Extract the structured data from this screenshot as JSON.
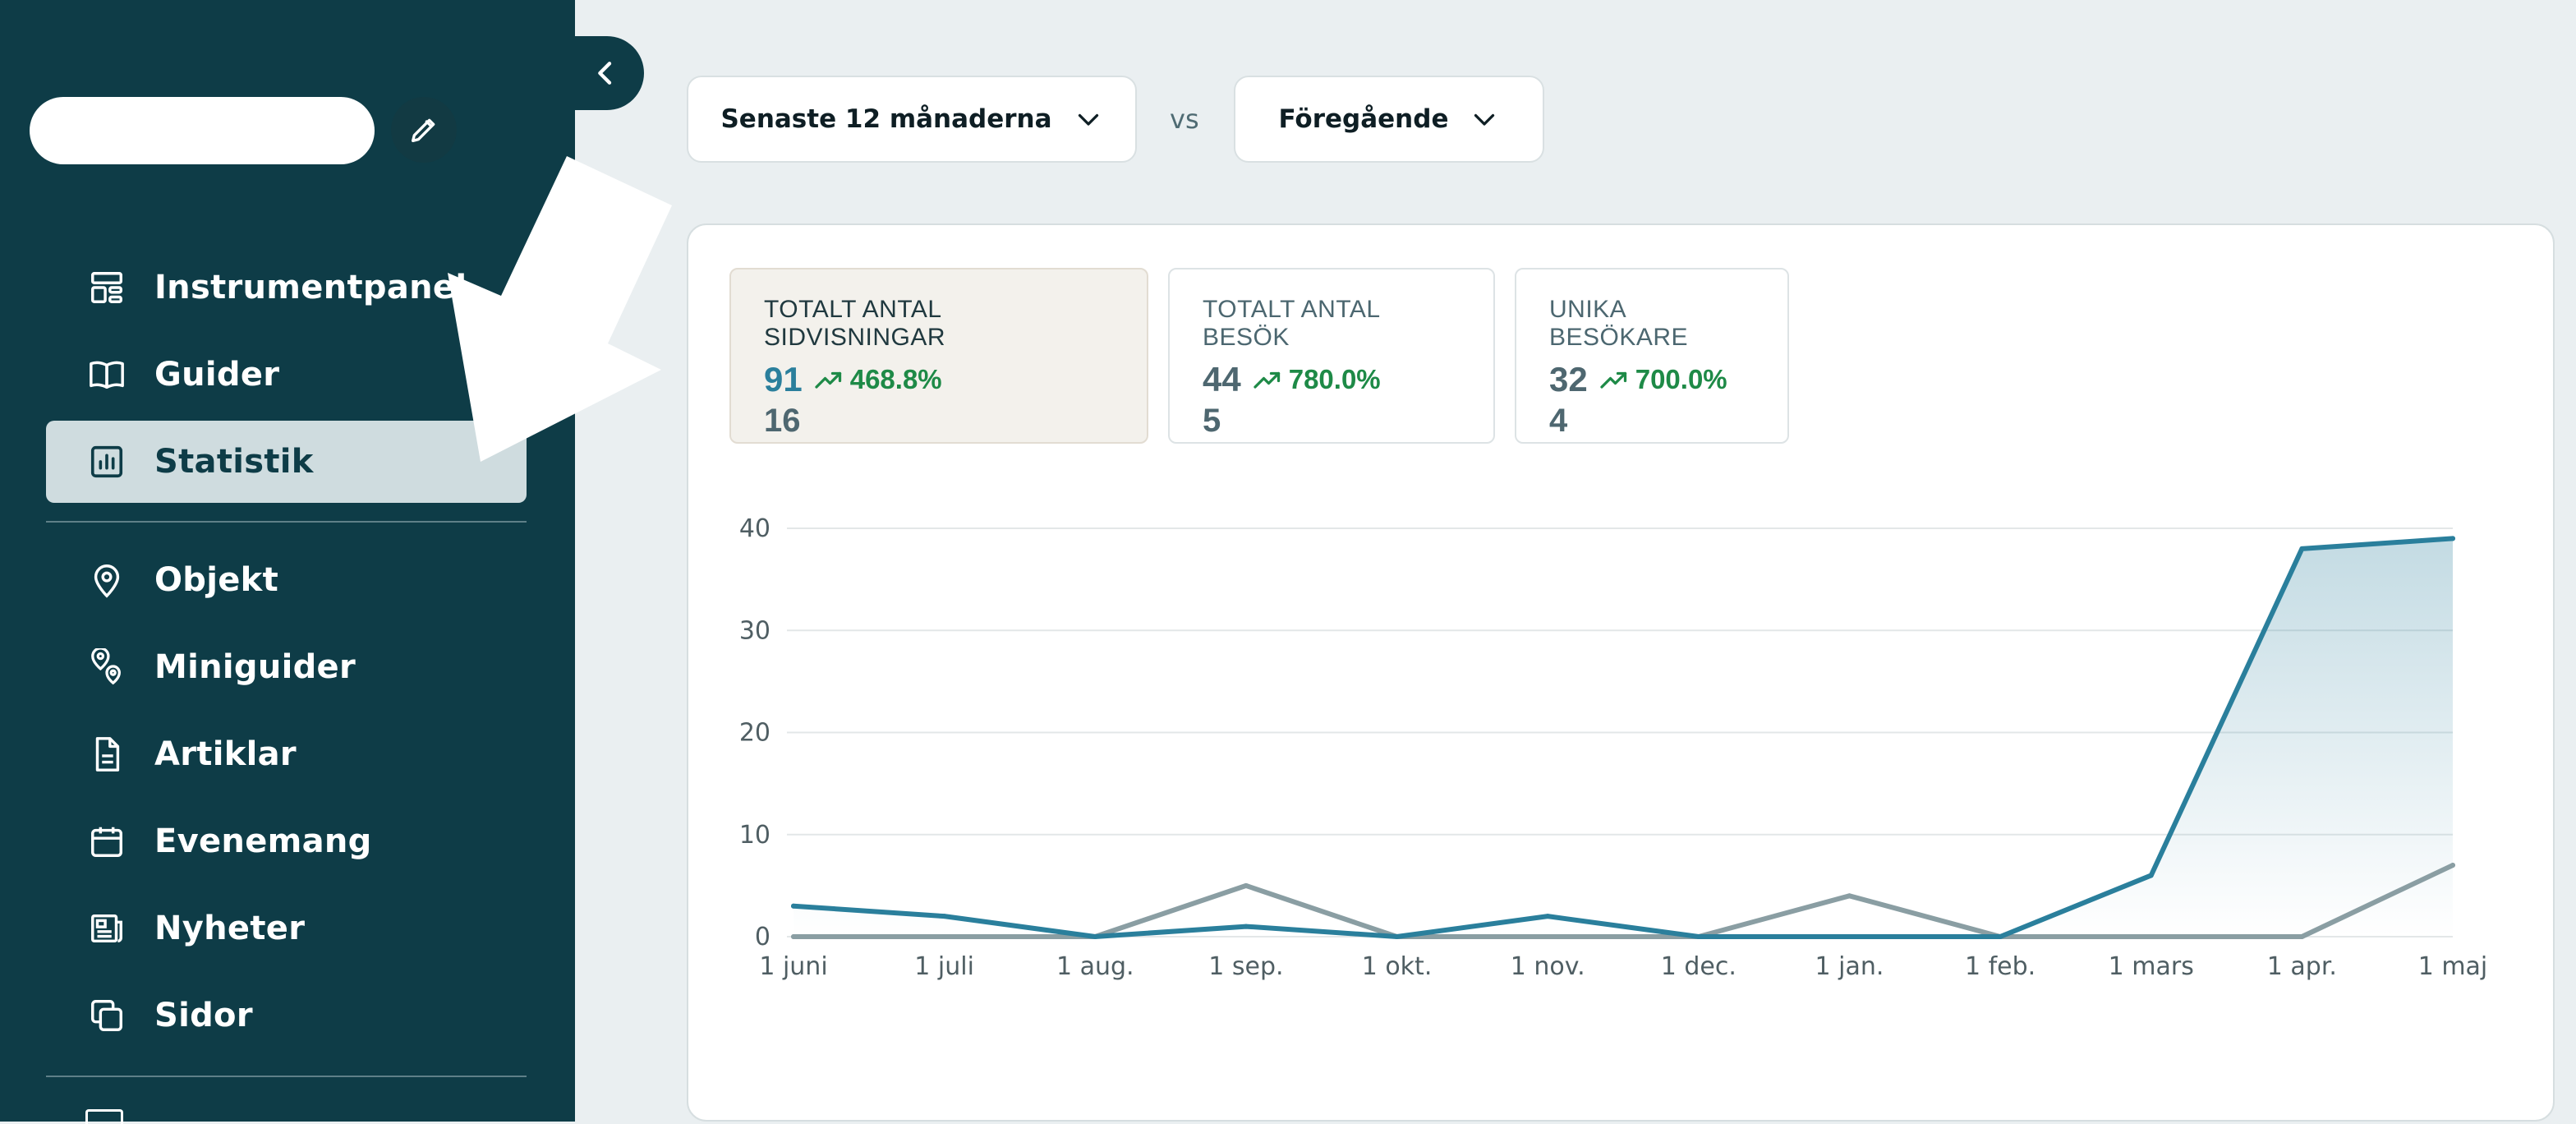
{
  "sidebar": {
    "items": [
      {
        "label": "Instrumentpanel",
        "icon": "dashboard-icon"
      },
      {
        "label": "Guider",
        "icon": "book-icon"
      },
      {
        "label": "Statistik",
        "icon": "chart-icon",
        "active": true
      },
      {
        "label": "Objekt",
        "icon": "map-pin-icon"
      },
      {
        "label": "Miniguider",
        "icon": "map-pins-icon"
      },
      {
        "label": "Artiklar",
        "icon": "document-icon"
      },
      {
        "label": "Evenemang",
        "icon": "calendar-icon"
      },
      {
        "label": "Nyheter",
        "icon": "newspaper-icon"
      },
      {
        "label": "Sidor",
        "icon": "pages-icon"
      }
    ]
  },
  "filters": {
    "period_label": "Senaste 12 månaderna",
    "vs_label": "vs",
    "compare_label": "Föregående"
  },
  "stats": [
    {
      "title": "TOTALT ANTAL SIDVISNINGAR",
      "value": "91",
      "change": "468.8%",
      "previous": "16",
      "active": true
    },
    {
      "title": "TOTALT ANTAL BESÖK",
      "value": "44",
      "change": "780.0%",
      "previous": "5"
    },
    {
      "title": "UNIKA BESÖKARE",
      "value": "32",
      "change": "700.0%",
      "previous": "4"
    }
  ],
  "colors": {
    "sidebar": "#0e3c47",
    "current_series": "#2a7f9c",
    "previous_series": "#8a9ea3",
    "trend_up": "#1e8a47"
  },
  "chart_data": {
    "type": "area",
    "categories": [
      "1 juni",
      "1 juli",
      "1 aug.",
      "1 sep.",
      "1 okt.",
      "1 nov.",
      "1 dec.",
      "1 jan.",
      "1 feb.",
      "1 mars",
      "1 apr.",
      "1 maj"
    ],
    "series": [
      {
        "values": [
          3,
          2,
          0,
          1,
          0,
          2,
          0,
          0,
          0,
          6,
          38,
          39
        ]
      },
      {
        "values": [
          0,
          0,
          0,
          5,
          0,
          0,
          0,
          4,
          0,
          0,
          0,
          7
        ]
      }
    ],
    "yticks": [
      0,
      10,
      20,
      30,
      40
    ],
    "ylim": [
      0,
      40
    ],
    "grid": true
  }
}
